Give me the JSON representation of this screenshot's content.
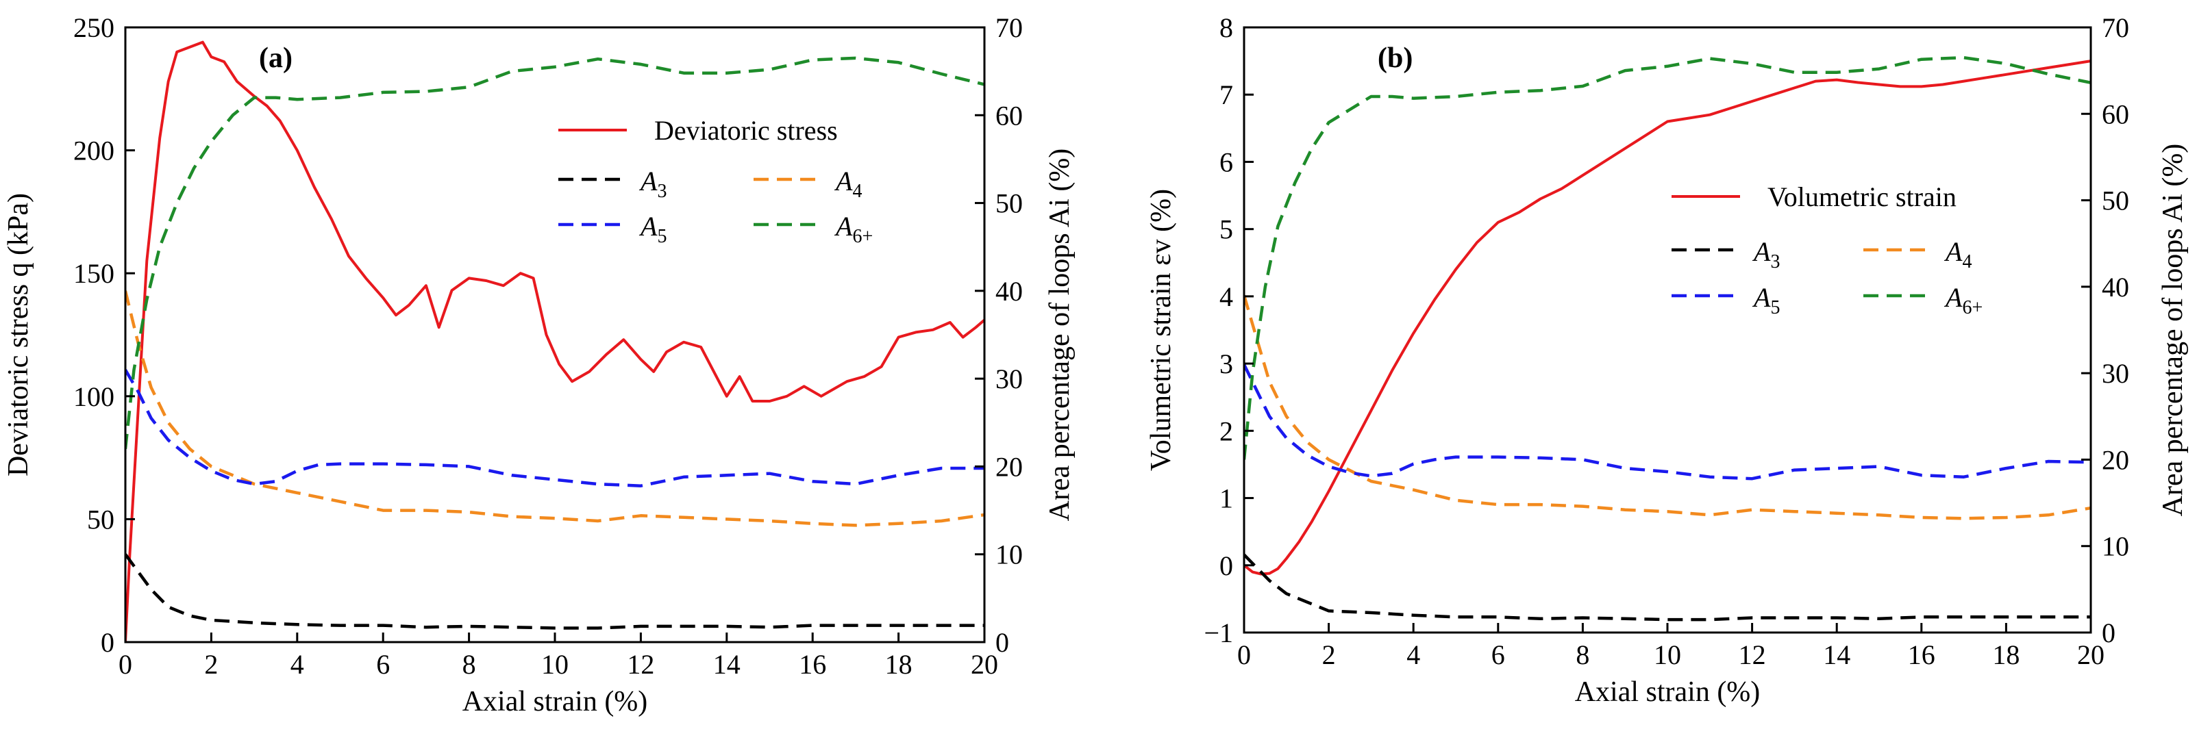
{
  "chart_data": [
    {
      "type": "line",
      "panel_label": "(a)",
      "xlabel": "Axial strain (%)",
      "ylabel_left": "Deviatoric stress q (kPa)",
      "ylabel_right": "Area percentage of loops Ai (%)",
      "xlim": [
        0,
        20
      ],
      "ylim_left": [
        0,
        250
      ],
      "ylim_right": [
        0,
        70
      ],
      "x_ticks": [
        "0",
        "2",
        "4",
        "6",
        "8",
        "10",
        "12",
        "14",
        "16",
        "18",
        "20"
      ],
      "y_left_ticks": [
        "0",
        "50",
        "100",
        "150",
        "200",
        "250"
      ],
      "y_right_ticks": [
        "0",
        "10",
        "20",
        "30",
        "40",
        "50",
        "60",
        "70"
      ],
      "legend_main": "Deviatoric stress",
      "legend_sub": [
        "A3",
        "A4",
        "A5",
        "A6+"
      ],
      "series": [
        {
          "name": "Deviatoric stress",
          "axis": "left",
          "color": "#e8191e",
          "dash": false,
          "x": [
            0,
            0.1,
            0.3,
            0.5,
            0.8,
            1.0,
            1.2,
            1.5,
            1.8,
            2.0,
            2.3,
            2.6,
            3.0,
            3.3,
            3.6,
            4.0,
            4.4,
            4.8,
            5.2,
            5.6,
            6.0,
            6.3,
            6.6,
            7.0,
            7.3,
            7.6,
            8.0,
            8.4,
            8.8,
            9.2,
            9.5,
            9.8,
            10.1,
            10.4,
            10.8,
            11.2,
            11.6,
            12.0,
            12.3,
            12.6,
            13.0,
            13.4,
            13.7,
            14.0,
            14.3,
            14.6,
            15.0,
            15.4,
            15.8,
            16.2,
            16.5,
            16.8,
            17.2,
            17.6,
            18.0,
            18.4,
            18.8,
            19.2,
            19.5,
            19.8,
            20.0
          ],
          "values": [
            0,
            35,
            95,
            155,
            205,
            228,
            240,
            242,
            244,
            238,
            236,
            228,
            222,
            218,
            212,
            200,
            185,
            172,
            157,
            148,
            140,
            133,
            137,
            145,
            128,
            143,
            148,
            147,
            145,
            150,
            148,
            125,
            113,
            106,
            110,
            117,
            123,
            115,
            110,
            118,
            122,
            120,
            110,
            100,
            108,
            98,
            98,
            100,
            104,
            100,
            103,
            106,
            108,
            112,
            124,
            126,
            127,
            130,
            124,
            128,
            131
          ]
        },
        {
          "name": "A3",
          "axis": "right",
          "color": "#000000",
          "dash": true,
          "x": [
            0,
            0.3,
            0.6,
            1.0,
            1.5,
            2.0,
            3.0,
            4.0,
            5.0,
            6.0,
            7.0,
            8.0,
            9.0,
            10.0,
            11.0,
            12.0,
            13.0,
            14.0,
            15.0,
            16.0,
            17.0,
            18.0,
            19.0,
            20.0
          ],
          "values": [
            10,
            8,
            6,
            4,
            3,
            2.5,
            2.2,
            2.0,
            1.9,
            1.9,
            1.7,
            1.8,
            1.7,
            1.6,
            1.6,
            1.8,
            1.8,
            1.8,
            1.7,
            1.9,
            1.9,
            1.9,
            1.9,
            1.9
          ]
        },
        {
          "name": "A4",
          "axis": "right",
          "color": "#f28a1e",
          "dash": true,
          "x": [
            0,
            0.3,
            0.6,
            1.0,
            1.5,
            2.0,
            3.0,
            4.0,
            5.0,
            6.0,
            7.0,
            8.0,
            9.0,
            10.0,
            11.0,
            12.0,
            13.0,
            14.0,
            15.0,
            16.0,
            17.0,
            18.0,
            19.0,
            20.0
          ],
          "values": [
            40,
            34,
            29,
            25,
            22,
            20,
            18,
            17,
            16,
            15,
            15,
            14.8,
            14.3,
            14.1,
            13.8,
            14.4,
            14.2,
            14.0,
            13.8,
            13.5,
            13.3,
            13.5,
            13.8,
            14.5
          ]
        },
        {
          "name": "A5",
          "axis": "right",
          "color": "#1a1aee",
          "dash": true,
          "x": [
            0,
            0.3,
            0.6,
            1.0,
            1.5,
            2.0,
            2.5,
            3.0,
            3.5,
            4.0,
            4.5,
            5.0,
            6.0,
            7.0,
            8.0,
            9.0,
            10.0,
            11.0,
            12.0,
            13.0,
            14.0,
            15.0,
            16.0,
            17.0,
            18.0,
            19.0,
            20.0
          ],
          "values": [
            31,
            28.5,
            25.5,
            23,
            21,
            19.5,
            18.5,
            18,
            18.3,
            19.5,
            20.2,
            20.3,
            20.3,
            20.2,
            20.0,
            19.0,
            18.5,
            18.0,
            17.8,
            18.8,
            19.0,
            19.2,
            18.3,
            18.0,
            19.0,
            19.8,
            19.8
          ]
        },
        {
          "name": "A6+",
          "axis": "right",
          "color": "#1e8c2a",
          "dash": true,
          "x": [
            0,
            0.2,
            0.5,
            0.8,
            1.2,
            1.6,
            2.0,
            2.5,
            3.0,
            3.5,
            4.0,
            5.0,
            6.0,
            7.0,
            8.0,
            9.0,
            10.0,
            11.0,
            12.0,
            13.0,
            14.0,
            15.0,
            16.0,
            17.0,
            18.0,
            19.0,
            20.0
          ],
          "values": [
            22,
            31,
            39,
            45,
            50,
            54,
            57,
            60,
            62,
            62,
            61.8,
            62,
            62.6,
            62.7,
            63.2,
            65,
            65.5,
            66.4,
            65.8,
            64.8,
            64.8,
            65.2,
            66.3,
            66.5,
            66,
            64.7,
            63.5
          ]
        }
      ]
    },
    {
      "type": "line",
      "panel_label": "(b)",
      "xlabel": "Axial strain (%)",
      "ylabel_left": "Volumetric strain εv (%)",
      "ylabel_right": "Area percentage of loops Ai (%)",
      "xlim": [
        0,
        20
      ],
      "ylim_left": [
        -1,
        8
      ],
      "ylim_right": [
        0,
        70
      ],
      "x_ticks": [
        "0",
        "2",
        "4",
        "6",
        "8",
        "10",
        "12",
        "14",
        "16",
        "18",
        "20"
      ],
      "y_left_ticks": [
        "−1",
        "0",
        "1",
        "2",
        "3",
        "4",
        "5",
        "6",
        "7",
        "8"
      ],
      "y_right_ticks": [
        "0",
        "10",
        "20",
        "30",
        "40",
        "50",
        "60",
        "70"
      ],
      "legend_main": "Volumetric strain",
      "legend_sub": [
        "A3",
        "A4",
        "A5",
        "A6+"
      ],
      "series": [
        {
          "name": "Volumetric strain",
          "axis": "left",
          "color": "#e8191e",
          "dash": false,
          "x": [
            0,
            0.2,
            0.4,
            0.6,
            0.8,
            1.0,
            1.3,
            1.6,
            2.0,
            2.5,
            3.0,
            3.5,
            4.0,
            4.5,
            5.0,
            5.5,
            6.0,
            6.5,
            7.0,
            7.5,
            8.0,
            8.5,
            9.0,
            9.5,
            10.0,
            10.5,
            11.0,
            11.5,
            12.0,
            12.5,
            13.0,
            13.5,
            14.0,
            14.5,
            15.0,
            15.5,
            16.0,
            16.5,
            17.0,
            17.5,
            18.0,
            18.5,
            19.0,
            19.5,
            20.0
          ],
          "values": [
            0,
            -0.1,
            -0.13,
            -0.12,
            -0.05,
            0.1,
            0.35,
            0.65,
            1.1,
            1.7,
            2.3,
            2.9,
            3.45,
            3.95,
            4.4,
            4.8,
            5.1,
            5.25,
            5.45,
            5.6,
            5.8,
            6.0,
            6.2,
            6.4,
            6.6,
            6.65,
            6.7,
            6.8,
            6.9,
            7.0,
            7.1,
            7.2,
            7.22,
            7.18,
            7.15,
            7.12,
            7.12,
            7.15,
            7.2,
            7.25,
            7.3,
            7.35,
            7.4,
            7.45,
            7.5
          ]
        },
        {
          "name": "A3",
          "axis": "right",
          "color": "#000000",
          "dash": true,
          "x": [
            0,
            0.3,
            0.6,
            1.0,
            1.5,
            2.0,
            3.0,
            4.0,
            5.0,
            6.0,
            7.0,
            8.0,
            9.0,
            10.0,
            11.0,
            12.0,
            13.0,
            14.0,
            15.0,
            16.0,
            17.0,
            18.0,
            19.0,
            20.0
          ],
          "values": [
            9,
            7.5,
            6,
            4.5,
            3.5,
            2.5,
            2.3,
            2.0,
            1.8,
            1.8,
            1.6,
            1.7,
            1.6,
            1.5,
            1.5,
            1.7,
            1.7,
            1.7,
            1.6,
            1.8,
            1.8,
            1.8,
            1.8,
            1.8
          ]
        },
        {
          "name": "A4",
          "axis": "right",
          "color": "#f28a1e",
          "dash": true,
          "x": [
            0,
            0.3,
            0.6,
            1.0,
            1.5,
            2.0,
            3.0,
            4.0,
            5.0,
            6.0,
            7.0,
            8.0,
            9.0,
            10.0,
            11.0,
            12.0,
            13.0,
            14.0,
            15.0,
            16.0,
            17.0,
            18.0,
            19.0,
            20.0
          ],
          "values": [
            39,
            34,
            29,
            25,
            22,
            20,
            17.5,
            16.5,
            15.3,
            14.8,
            14.8,
            14.6,
            14.2,
            14.0,
            13.6,
            14.2,
            14.0,
            13.8,
            13.6,
            13.3,
            13.2,
            13.3,
            13.6,
            14.4
          ]
        },
        {
          "name": "A5",
          "axis": "right",
          "color": "#1a1aee",
          "dash": true,
          "x": [
            0,
            0.3,
            0.6,
            1.0,
            1.5,
            2.0,
            2.5,
            3.0,
            3.5,
            4.0,
            4.5,
            5.0,
            6.0,
            7.0,
            8.0,
            9.0,
            10.0,
            11.0,
            12.0,
            13.0,
            14.0,
            15.0,
            16.0,
            17.0,
            18.0,
            19.0,
            20.0
          ],
          "values": [
            31,
            28,
            25,
            22.5,
            20.5,
            19.2,
            18.5,
            18.1,
            18.4,
            19.5,
            20.0,
            20.3,
            20.3,
            20.2,
            20.0,
            19.0,
            18.6,
            18.0,
            17.8,
            18.8,
            19.0,
            19.2,
            18.2,
            18.0,
            19.0,
            19.8,
            19.7
          ]
        },
        {
          "name": "A6+",
          "axis": "right",
          "color": "#1e8c2a",
          "dash": true,
          "x": [
            0,
            0.2,
            0.5,
            0.8,
            1.2,
            1.6,
            2.0,
            2.5,
            3.0,
            3.5,
            4.0,
            5.0,
            6.0,
            7.0,
            8.0,
            9.0,
            10.0,
            11.0,
            12.0,
            13.0,
            14.0,
            15.0,
            16.0,
            17.0,
            18.0,
            19.0,
            20.0
          ],
          "values": [
            20,
            30,
            40,
            47,
            52,
            56,
            59,
            60.5,
            62,
            62,
            61.8,
            62,
            62.5,
            62.7,
            63.2,
            65,
            65.5,
            66.4,
            65.8,
            64.8,
            64.8,
            65.2,
            66.3,
            66.5,
            65.8,
            64.6,
            63.6
          ]
        }
      ]
    }
  ]
}
